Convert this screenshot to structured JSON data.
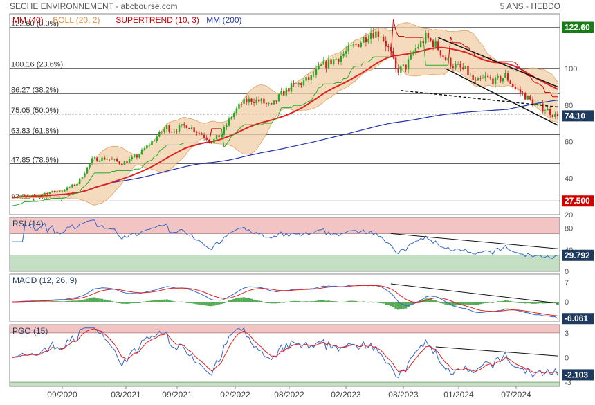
{
  "header": {
    "title": "SECHE ENVIRONNEMENT - abcbourse.com",
    "period": "5 ANS - HEBDO"
  },
  "colors": {
    "candle_up": "#22aa22",
    "candle_down": "#cc2222",
    "mm40": "#dd2222",
    "mm200": "#2233aa",
    "boll_fill": "#f2cfa8",
    "boll_line": "#e0a060",
    "supertrend": "#cc0000",
    "rsi_line": "#3366cc",
    "signal_line": "#dd2222",
    "macd_hist": "#55aa55",
    "badge_green": "#1a7a1a",
    "badge_red": "#cc0000",
    "badge_dark": "#1e3a5f",
    "zone_red": "#f2c4c4",
    "zone_green": "#c4dfc4"
  },
  "chart_data": [
    {
      "type": "candlestick",
      "legend": [
        {
          "label": "MM (40)",
          "color": "#cc0000"
        },
        {
          "label": "BOLL (20, 2)",
          "color": "#e09040"
        },
        {
          "label": "SUPERTREND (10, 3)",
          "color": "#cc0000"
        },
        {
          "label": "MM (200)",
          "color": "#2233aa"
        }
      ],
      "ylim": [
        20,
        130
      ],
      "yticks": [
        20,
        40,
        60,
        80,
        100
      ],
      "x_labels": [
        "09/2020",
        "03/2021",
        "09/2021",
        "02/2022",
        "08/2022",
        "02/2023",
        "08/2023",
        "01/2024",
        "07/2024"
      ],
      "fibonacci": [
        {
          "label": "122.60 (0.0%)",
          "value": 122.6
        },
        {
          "label": "100.16 (23.6%)",
          "value": 100.16
        },
        {
          "label": "86.27 (38.2%)",
          "value": 86.27
        },
        {
          "label": "75.05 (50.0%)",
          "value": 75.05
        },
        {
          "label": "63.83 (61.8%)",
          "value": 63.83
        },
        {
          "label": "47.85 (78.6%)",
          "value": 47.85
        },
        {
          "label": "27.50 (100.0%)",
          "value": 27.5
        }
      ],
      "badges": [
        {
          "label": "122.60",
          "value": 122.6
        },
        {
          "label": "74.10",
          "value": 74.1
        },
        {
          "label": "27.500",
          "value": 27.5
        }
      ],
      "price_anchors": [
        [
          0,
          30
        ],
        [
          8,
          30
        ],
        [
          14,
          32
        ],
        [
          20,
          33
        ],
        [
          26,
          37
        ],
        [
          32,
          50
        ],
        [
          38,
          51
        ],
        [
          44,
          48
        ],
        [
          50,
          52
        ],
        [
          56,
          60
        ],
        [
          62,
          68
        ],
        [
          64,
          66
        ],
        [
          70,
          69
        ],
        [
          76,
          64
        ],
        [
          80,
          60
        ],
        [
          84,
          64
        ],
        [
          88,
          74
        ],
        [
          92,
          81
        ],
        [
          96,
          83
        ],
        [
          100,
          82
        ],
        [
          104,
          79
        ],
        [
          108,
          86
        ],
        [
          112,
          90
        ],
        [
          116,
          92
        ],
        [
          120,
          95
        ],
        [
          124,
          101
        ],
        [
          128,
          104
        ],
        [
          132,
          107
        ],
        [
          136,
          111
        ],
        [
          140,
          115
        ],
        [
          144,
          120
        ],
        [
          148,
          119
        ],
        [
          152,
          108
        ],
        [
          154,
          99
        ],
        [
          158,
          101
        ],
        [
          162,
          111
        ],
        [
          166,
          117
        ],
        [
          170,
          113
        ],
        [
          174,
          105
        ],
        [
          178,
          101
        ],
        [
          182,
          99
        ],
        [
          186,
          92
        ],
        [
          190,
          95
        ],
        [
          194,
          93
        ],
        [
          198,
          96
        ],
        [
          202,
          89
        ],
        [
          206,
          85
        ],
        [
          210,
          80
        ],
        [
          214,
          78
        ],
        [
          218,
          74.1
        ]
      ],
      "channel_upper": [
        [
          171,
          117
        ],
        [
          219,
          90
        ]
      ],
      "channel_lower": [
        [
          174,
          100
        ],
        [
          219,
          69
        ]
      ],
      "dashed_support": [
        [
          156,
          88
        ],
        [
          219,
          79
        ]
      ],
      "last_close": 74.1
    },
    {
      "type": "line",
      "legend": [
        {
          "label": "RSI (14)",
          "color": "#1e3a5f"
        }
      ],
      "ylim": [
        0,
        100
      ],
      "yticks": [
        0,
        40,
        80
      ],
      "zones": {
        "upper": 70,
        "lower": 30
      },
      "badge": {
        "label": "29.792",
        "value": 29.792
      },
      "trendline": [
        [
          152,
          70
        ],
        [
          219,
          42
        ]
      ]
    },
    {
      "type": "line",
      "legend": [
        {
          "label": "MACD (12, 26, 9)",
          "color": "#1e3a5f"
        }
      ],
      "ylim": [
        -7,
        10
      ],
      "yticks": [
        -7,
        0,
        7
      ],
      "badge": {
        "label": "-6.061",
        "value": -6.061
      },
      "trendline": [
        [
          152,
          6.5
        ],
        [
          219,
          -0.5
        ]
      ]
    },
    {
      "type": "line",
      "legend": [
        {
          "label": "PGO (15)",
          "color": "#1e3a5f"
        }
      ],
      "ylim": [
        -3.5,
        4
      ],
      "yticks": [
        -3,
        0,
        3
      ],
      "zone_ticks": [
        -3,
        0,
        3
      ],
      "badge": {
        "label": "-2.103",
        "value": -2.103
      },
      "trendline": [
        [
          170,
          1.3
        ],
        [
          219,
          0.2
        ]
      ]
    }
  ]
}
